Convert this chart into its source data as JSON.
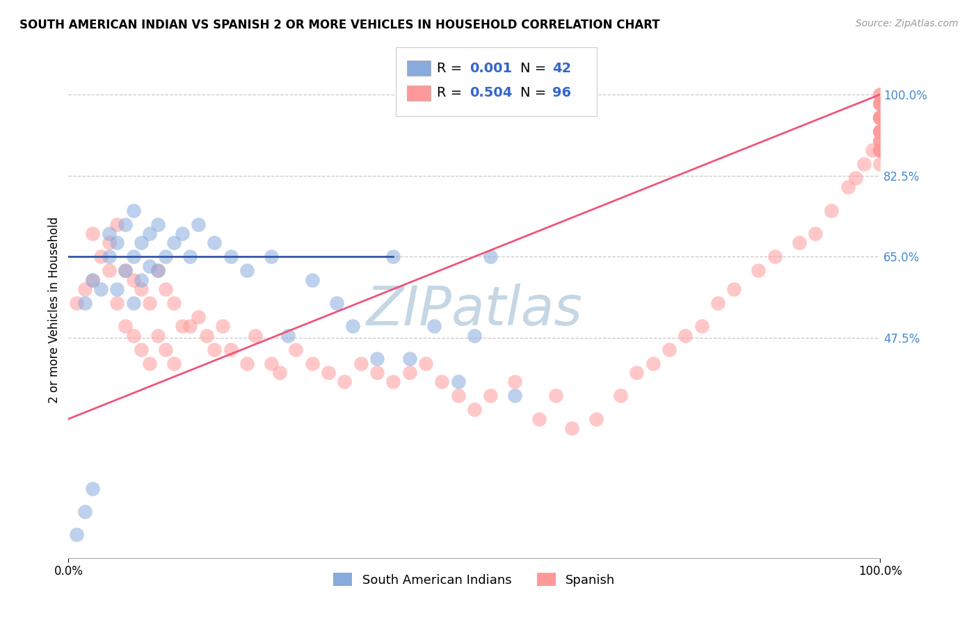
{
  "title": "SOUTH AMERICAN INDIAN VS SPANISH 2 OR MORE VEHICLES IN HOUSEHOLD CORRELATION CHART",
  "source": "Source: ZipAtlas.com",
  "ylabel": "2 or more Vehicles in Household",
  "xlim": [
    0.0,
    100.0
  ],
  "ylim": [
    0.0,
    107.0
  ],
  "ytick_vals": [
    47.5,
    65.0,
    82.5,
    100.0
  ],
  "ytick_labels": [
    "47.5%",
    "65.0%",
    "82.5%",
    "100.0%"
  ],
  "xtick_vals": [
    0,
    100
  ],
  "xtick_labels": [
    "0.0%",
    "100.0%"
  ],
  "legend1_label": "South American Indians",
  "legend2_label": "Spanish",
  "r1": 0.001,
  "n1": 42,
  "r2": 0.504,
  "n2": 96,
  "color_blue": "#88AADD",
  "color_pink": "#FF9999",
  "color_blue_line": "#3355AA",
  "color_pink_line": "#EE5577",
  "watermark_text": "ZIPatlas",
  "blue_line_x": [
    0,
    40
  ],
  "blue_line_y": [
    65.0,
    65.0
  ],
  "pink_line_x": [
    0,
    100
  ],
  "pink_line_y": [
    30.0,
    100.0
  ],
  "blue_x": [
    1,
    2,
    2,
    3,
    3,
    4,
    5,
    5,
    6,
    6,
    7,
    7,
    8,
    8,
    8,
    9,
    9,
    10,
    10,
    11,
    11,
    12,
    13,
    14,
    15,
    16,
    18,
    20,
    22,
    25,
    27,
    30,
    33,
    35,
    38,
    40,
    42,
    45,
    48,
    50,
    52,
    55
  ],
  "blue_y": [
    5,
    10,
    55,
    15,
    60,
    58,
    65,
    70,
    58,
    68,
    62,
    72,
    55,
    65,
    75,
    60,
    68,
    63,
    70,
    62,
    72,
    65,
    68,
    70,
    65,
    72,
    68,
    65,
    62,
    65,
    48,
    60,
    55,
    50,
    43,
    65,
    43,
    50,
    38,
    48,
    65,
    35
  ],
  "pink_x": [
    1,
    2,
    3,
    3,
    4,
    5,
    5,
    6,
    6,
    7,
    7,
    8,
    8,
    9,
    9,
    10,
    10,
    11,
    11,
    12,
    12,
    13,
    13,
    14,
    15,
    16,
    17,
    18,
    19,
    20,
    22,
    23,
    25,
    26,
    28,
    30,
    32,
    34,
    36,
    38,
    40,
    42,
    44,
    46,
    48,
    50,
    52,
    55,
    58,
    60,
    62,
    65,
    68,
    70,
    72,
    74,
    76,
    78,
    80,
    82,
    85,
    87,
    90,
    92,
    94,
    96,
    97,
    98,
    99,
    100,
    100,
    100,
    100,
    100,
    100,
    100,
    100,
    100,
    100,
    100,
    100,
    100,
    100,
    100,
    100,
    100,
    100,
    100,
    100,
    100,
    100,
    100,
    100,
    100,
    100,
    100
  ],
  "pink_y": [
    55,
    58,
    60,
    70,
    65,
    62,
    68,
    55,
    72,
    50,
    62,
    48,
    60,
    45,
    58,
    42,
    55,
    48,
    62,
    45,
    58,
    42,
    55,
    50,
    50,
    52,
    48,
    45,
    50,
    45,
    42,
    48,
    42,
    40,
    45,
    42,
    40,
    38,
    42,
    40,
    38,
    40,
    42,
    38,
    35,
    32,
    35,
    38,
    30,
    35,
    28,
    30,
    35,
    40,
    42,
    45,
    48,
    50,
    55,
    58,
    62,
    65,
    68,
    70,
    75,
    80,
    82,
    85,
    88,
    88,
    92,
    95,
    90,
    92,
    88,
    95,
    100,
    95,
    98,
    92,
    88,
    90,
    95,
    98,
    92,
    88,
    85,
    90,
    95,
    98,
    100,
    95,
    88,
    92,
    95,
    98
  ]
}
